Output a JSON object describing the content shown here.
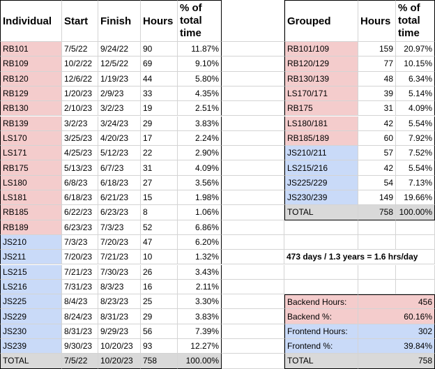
{
  "colors": {
    "backend": "#f4cccc",
    "frontend": "#c9daf8",
    "total": "#d9d9d9",
    "grid": "#d4d4d4",
    "border": "#000000"
  },
  "individual": {
    "headers": {
      "name": "Individual",
      "start": "Start",
      "finish": "Finish",
      "hours": "Hours",
      "pct": "% of total time"
    },
    "rows": [
      {
        "name": "RB101",
        "start": "7/5/22",
        "finish": "9/24/22",
        "hours": "90",
        "pct": "11.87%",
        "group": "backend"
      },
      {
        "name": "RB109",
        "start": "10/2/22",
        "finish": "12/5/22",
        "hours": "69",
        "pct": "9.10%",
        "group": "backend"
      },
      {
        "name": "RB120",
        "start": "12/6/22",
        "finish": "1/19/23",
        "hours": "44",
        "pct": "5.80%",
        "group": "backend"
      },
      {
        "name": "RB129",
        "start": "1/20/23",
        "finish": "2/9/23",
        "hours": "33",
        "pct": "4.35%",
        "group": "backend"
      },
      {
        "name": "RB130",
        "start": "2/10/23",
        "finish": "3/2/23",
        "hours": "19",
        "pct": "2.51%",
        "group": "backend"
      },
      {
        "name": "RB139",
        "start": "3/2/23",
        "finish": "3/24/23",
        "hours": "29",
        "pct": "3.83%",
        "group": "backend"
      },
      {
        "name": "LS170",
        "start": "3/25/23",
        "finish": "4/20/23",
        "hours": "17",
        "pct": "2.24%",
        "group": "backend"
      },
      {
        "name": "LS171",
        "start": "4/25/23",
        "finish": "5/12/23",
        "hours": "22",
        "pct": "2.90%",
        "group": "backend"
      },
      {
        "name": "RB175",
        "start": "5/13/23",
        "finish": "6/7/23",
        "hours": "31",
        "pct": "4.09%",
        "group": "backend"
      },
      {
        "name": "LS180",
        "start": "6/8/23",
        "finish": "6/18/23",
        "hours": "27",
        "pct": "3.56%",
        "group": "backend"
      },
      {
        "name": "LS181",
        "start": "6/18/23",
        "finish": "6/21/23",
        "hours": "15",
        "pct": "1.98%",
        "group": "backend"
      },
      {
        "name": "RB185",
        "start": "6/22/23",
        "finish": "6/23/23",
        "hours": "8",
        "pct": "1.06%",
        "group": "backend"
      },
      {
        "name": "RB189",
        "start": "6/23/23",
        "finish": "7/3/23",
        "hours": "52",
        "pct": "6.86%",
        "group": "backend"
      },
      {
        "name": "JS210",
        "start": "7/3/23",
        "finish": "7/20/23",
        "hours": "47",
        "pct": "6.20%",
        "group": "frontend"
      },
      {
        "name": "JS211",
        "start": "7/20/23",
        "finish": "7/21/23",
        "hours": "10",
        "pct": "1.32%",
        "group": "frontend"
      },
      {
        "name": "LS215",
        "start": "7/21/23",
        "finish": "7/30/23",
        "hours": "26",
        "pct": "3.43%",
        "group": "frontend"
      },
      {
        "name": "LS216",
        "start": "7/31/23",
        "finish": "8/3/23",
        "hours": "16",
        "pct": "2.11%",
        "group": "frontend"
      },
      {
        "name": "JS225",
        "start": "8/4/23",
        "finish": "8/23/23",
        "hours": "25",
        "pct": "3.30%",
        "group": "frontend"
      },
      {
        "name": "JS229",
        "start": "8/24/23",
        "finish": "8/31/23",
        "hours": "29",
        "pct": "3.83%",
        "group": "frontend"
      },
      {
        "name": "JS230",
        "start": "8/31/23",
        "finish": "9/29/23",
        "hours": "56",
        "pct": "7.39%",
        "group": "frontend"
      },
      {
        "name": "JS239",
        "start": "9/30/23",
        "finish": "10/20/23",
        "hours": "93",
        "pct": "12.27%",
        "group": "frontend"
      }
    ],
    "total": {
      "name": "TOTAL",
      "start": "7/5/22",
      "finish": "10/20/23",
      "hours": "758",
      "pct": "100.00%"
    }
  },
  "grouped": {
    "headers": {
      "name": "Grouped",
      "hours": "Hours",
      "pct": "% of total time"
    },
    "rows": [
      {
        "name": "RB101/109",
        "hours": "159",
        "pct": "20.97%",
        "group": "backend"
      },
      {
        "name": "RB120/129",
        "hours": "77",
        "pct": "10.15%",
        "group": "backend"
      },
      {
        "name": "RB130/139",
        "hours": "48",
        "pct": "6.34%",
        "group": "backend"
      },
      {
        "name": "LS170/171",
        "hours": "39",
        "pct": "5.14%",
        "group": "backend"
      },
      {
        "name": "RB175",
        "hours": "31",
        "pct": "4.09%",
        "group": "backend"
      },
      {
        "name": "LS180/181",
        "hours": "42",
        "pct": "5.54%",
        "group": "backend"
      },
      {
        "name": "RB185/189",
        "hours": "60",
        "pct": "7.92%",
        "group": "backend"
      },
      {
        "name": "JS210/211",
        "hours": "57",
        "pct": "7.52%",
        "group": "frontend"
      },
      {
        "name": "LS215/216",
        "hours": "42",
        "pct": "5.54%",
        "group": "frontend"
      },
      {
        "name": "JS225/229",
        "hours": "54",
        "pct": "7.13%",
        "group": "frontend"
      },
      {
        "name": "JS230/239",
        "hours": "149",
        "pct": "19.66%",
        "group": "frontend"
      }
    ],
    "total": {
      "name": "TOTAL",
      "hours": "758",
      "pct": "100.00%"
    }
  },
  "note": "473 days / 1.3 years = 1.6 hrs/day",
  "summary": [
    {
      "label": "Backend Hours:",
      "value": "456",
      "group": "backend"
    },
    {
      "label": "Backend %:",
      "value": "60.16%",
      "group": "backend"
    },
    {
      "label": "Frontend Hours:",
      "value": "302",
      "group": "frontend"
    },
    {
      "label": "Frontend %:",
      "value": "39.84%",
      "group": "frontend"
    },
    {
      "label": "TOTAL",
      "value": "758",
      "group": "total"
    }
  ]
}
